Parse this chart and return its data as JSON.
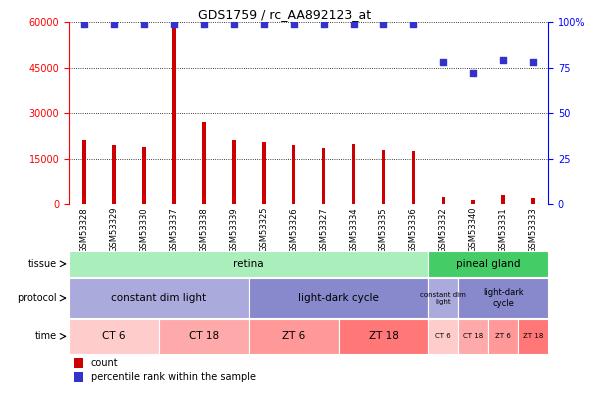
{
  "title": "GDS1759 / rc_AA892123_at",
  "samples": [
    "GSM53328",
    "GSM53329",
    "GSM53330",
    "GSM53337",
    "GSM53338",
    "GSM53339",
    "GSM53325",
    "GSM53326",
    "GSM53327",
    "GSM53334",
    "GSM53335",
    "GSM53336",
    "GSM53332",
    "GSM53340",
    "GSM53331",
    "GSM53333"
  ],
  "counts": [
    21000,
    19500,
    19000,
    59000,
    27000,
    21000,
    20500,
    19500,
    18500,
    20000,
    18000,
    17500,
    2500,
    1500,
    3000,
    2000
  ],
  "percentile_ranks": [
    99,
    99,
    99,
    99,
    99,
    99,
    99,
    99,
    99,
    99,
    99,
    99,
    78,
    72,
    79,
    78
  ],
  "ylim_left": [
    0,
    60000
  ],
  "ylim_right": [
    0,
    100
  ],
  "yticks_left": [
    0,
    15000,
    30000,
    45000,
    60000
  ],
  "yticks_right": [
    0,
    25,
    50,
    75,
    100
  ],
  "bar_color": "#cc0000",
  "dot_color": "#3333cc",
  "tissue_retina_color": "#aaeebb",
  "tissue_pineal_color": "#44cc66",
  "protocol_cdl_color": "#aaaadd",
  "protocol_ldc_color": "#8888cc",
  "time_ct6_color": "#ffcccc",
  "time_ct18_color": "#ffaaaa",
  "time_zt6_color": "#ff9999",
  "time_zt18_color": "#ff7777",
  "tissue_groups": [
    {
      "label": "retina",
      "start": 0,
      "end": 12
    },
    {
      "label": "pineal gland",
      "start": 12,
      "end": 16
    }
  ],
  "protocol_groups": [
    {
      "label": "constant dim light",
      "start": 0,
      "end": 6
    },
    {
      "label": "light-dark cycle",
      "start": 6,
      "end": 12
    },
    {
      "label": "constant dim\nlight",
      "start": 12,
      "end": 13
    },
    {
      "label": "light-dark\ncycle",
      "start": 13,
      "end": 16
    }
  ],
  "time_groups": [
    {
      "label": "CT 6",
      "start": 0,
      "end": 3
    },
    {
      "label": "CT 18",
      "start": 3,
      "end": 6
    },
    {
      "label": "ZT 6",
      "start": 6,
      "end": 9
    },
    {
      "label": "ZT 18",
      "start": 9,
      "end": 12
    },
    {
      "label": "CT 6",
      "start": 12,
      "end": 13
    },
    {
      "label": "CT 18",
      "start": 13,
      "end": 14
    },
    {
      "label": "ZT 6",
      "start": 14,
      "end": 15
    },
    {
      "label": "ZT 18",
      "start": 15,
      "end": 16
    }
  ]
}
